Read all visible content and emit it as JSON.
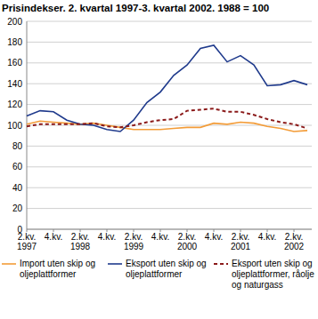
{
  "chart_data": {
    "type": "line",
    "title": "Prisindekser. 2. kvartal 1997-3. kvartal 2002. 1988 = 100",
    "categories": [
      "2.kv.\n1997",
      null,
      "4.kv.",
      null,
      "2.kv.\n1998",
      null,
      "4.kv.",
      null,
      "2.kv.\n1999",
      null,
      "4.kv.",
      null,
      "2.kv.\n2000",
      null,
      "4.kv.",
      null,
      "2.kv.\n2001",
      null,
      "4.kv.",
      null,
      "2.kv.\n2002",
      null
    ],
    "series": [
      {
        "name": "Import uten skip og oljeplattformer",
        "color": "#f39c38",
        "line_style": "solid",
        "values": [
          101,
          104,
          103,
          102,
          101,
          102,
          100,
          98,
          96,
          96,
          96,
          97,
          98,
          98,
          102,
          101,
          103,
          102,
          99,
          97,
          94,
          95
        ]
      },
      {
        "name": "Eksport uten skip og oljeplattformer",
        "color": "#1f3a8c",
        "line_style": "solid",
        "values": [
          109,
          114,
          113,
          105,
          101,
          100,
          96,
          94,
          105,
          122,
          132,
          148,
          158,
          174,
          177,
          161,
          167,
          158,
          138,
          139,
          143,
          139
        ]
      },
      {
        "name": "Eksport uten skip og oljeplattformer, råolje og naturgass",
        "color": "#8b1a1a",
        "line_style": "dashed",
        "values": [
          99,
          101,
          101,
          101,
          101,
          102,
          99,
          98,
          100,
          103,
          105,
          106,
          114,
          115,
          116,
          113,
          113,
          110,
          106,
          103,
          101,
          97
        ]
      }
    ],
    "ylim": [
      0,
      200
    ],
    "yticks": [
      0,
      20,
      40,
      60,
      80,
      100,
      120,
      140,
      160,
      180,
      200
    ],
    "grid": true,
    "legend": "bottom"
  }
}
